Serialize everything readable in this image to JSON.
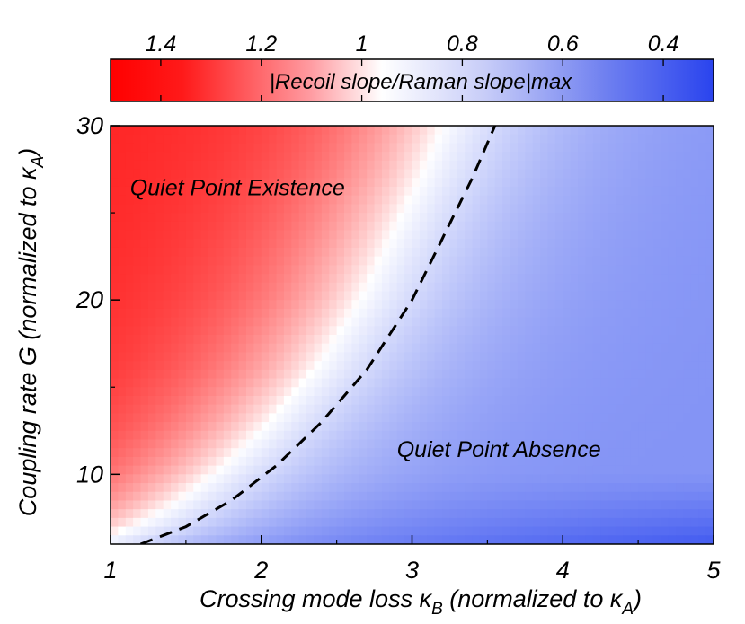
{
  "chart_data": {
    "type": "heatmap",
    "xlabel": "Crossing mode loss κ",
    "xlabel_sub": "B",
    "xlabel_suffix": " (normalized to κ",
    "xlabel_suffix_sub": "A",
    "xlabel_close": ")",
    "ylabel": "Coupling rate G (normalized to κ",
    "ylabel_sub": "A",
    "ylabel_close": ")",
    "xlim": [
      1,
      5
    ],
    "ylim": [
      6,
      30
    ],
    "x_ticks": [
      1,
      2,
      3,
      4,
      5
    ],
    "x_tick_labels": [
      "1",
      "2",
      "3",
      "4",
      "5"
    ],
    "y_ticks": [
      10,
      20,
      30
    ],
    "y_tick_labels": [
      "10",
      "20",
      "30"
    ],
    "y_minor_ticks": [
      15,
      25
    ],
    "colorbar": {
      "label": "|Recoil slope/Raman slope|max",
      "ticks": [
        1.4,
        1.2,
        1.0,
        0.8,
        0.6,
        0.4
      ],
      "tick_labels": [
        "1.4",
        "1.2",
        "1",
        "0.8",
        "0.6",
        "0.4"
      ],
      "range": [
        1.5,
        0.3
      ],
      "colors": {
        "high": "#ff0000",
        "mid": "#ffffff",
        "low": "#2040f0"
      }
    },
    "boundary": {
      "name": "",
      "style": "dashed",
      "color": "#000000",
      "points": [
        [
          1.2,
          6
        ],
        [
          1.5,
          7
        ],
        [
          1.8,
          8.5
        ],
        [
          2.1,
          10.5
        ],
        [
          2.4,
          13
        ],
        [
          2.7,
          16
        ],
        [
          3.0,
          20
        ],
        [
          3.2,
          23.5
        ],
        [
          3.4,
          27
        ],
        [
          3.55,
          30
        ]
      ]
    },
    "annotations": [
      {
        "text": "Quiet Point Existence",
        "x": 1.13,
        "y": 26
      },
      {
        "text": "Quiet Point Absence",
        "x": 2.9,
        "y": 11
      }
    ]
  }
}
